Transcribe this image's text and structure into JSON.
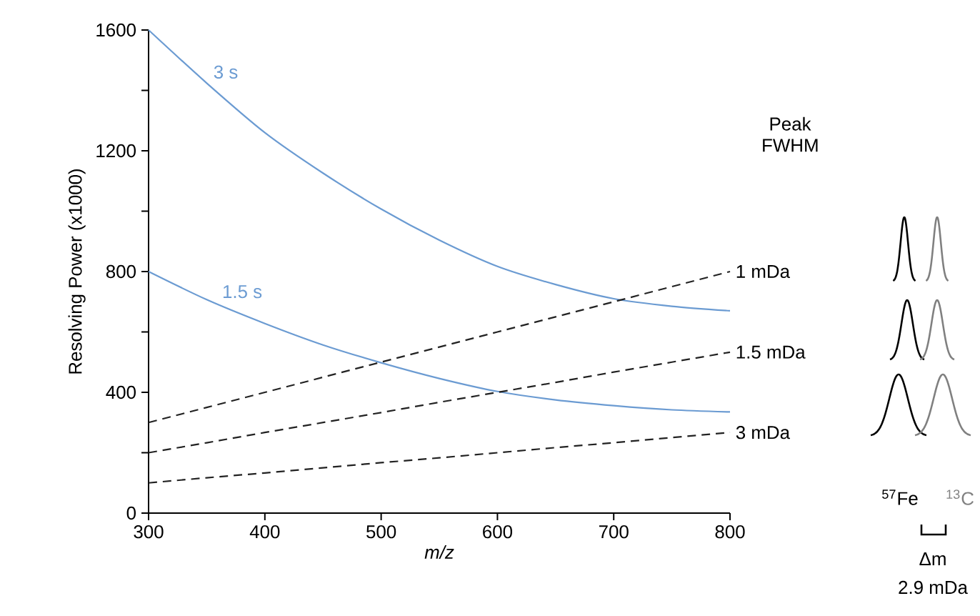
{
  "chart_data": {
    "type": "line",
    "xlabel": "m/z",
    "ylabel": "Resolving Power (x1000)",
    "x": [
      300,
      350,
      400,
      450,
      500,
      550,
      600,
      650,
      700,
      750,
      800
    ],
    "series": [
      {
        "name": "3 s",
        "color": "#6b9bd2",
        "line_style": "solid",
        "values": [
          1600,
          1424,
          1260,
          1126,
          1007,
          904,
          817,
          757,
          710,
          685,
          670
        ]
      },
      {
        "name": "1.5 s",
        "color": "#6b9bd2",
        "line_style": "solid",
        "values": [
          800,
          707,
          628,
          557,
          498,
          446,
          403,
          375,
          356,
          342,
          335
        ]
      },
      {
        "name": "1 mDa",
        "color": "#222222",
        "line_style": "dashed",
        "values": [
          300,
          350,
          400,
          450,
          500,
          550,
          600,
          650,
          700,
          750,
          800
        ]
      },
      {
        "name": "1.5 mDa",
        "color": "#222222",
        "line_style": "dashed",
        "values": [
          200,
          233,
          267,
          300,
          333,
          367,
          400,
          433,
          467,
          500,
          533
        ]
      },
      {
        "name": "3 mDa",
        "color": "#222222",
        "line_style": "dashed",
        "values": [
          100,
          117,
          133,
          150,
          167,
          183,
          200,
          217,
          233,
          250,
          267
        ]
      }
    ],
    "xlim": [
      300,
      800
    ],
    "ylim": [
      0,
      1600
    ],
    "xticks": [
      300,
      400,
      500,
      600,
      700,
      800
    ],
    "yticks": [
      0,
      {
        "value": 200,
        "label": null
      },
      400,
      {
        "value": 600,
        "label": null
      },
      800,
      {
        "value": 1000,
        "label": null
      },
      1200,
      {
        "value": 1400,
        "label": null
      },
      1600
    ],
    "grid": false,
    "legend": false,
    "marker": "none",
    "annotations": [
      "Peak FWHM",
      "$^{57}$Fe",
      "$^{13}$C",
      "Δm",
      "2.9 mDa"
    ]
  }
}
